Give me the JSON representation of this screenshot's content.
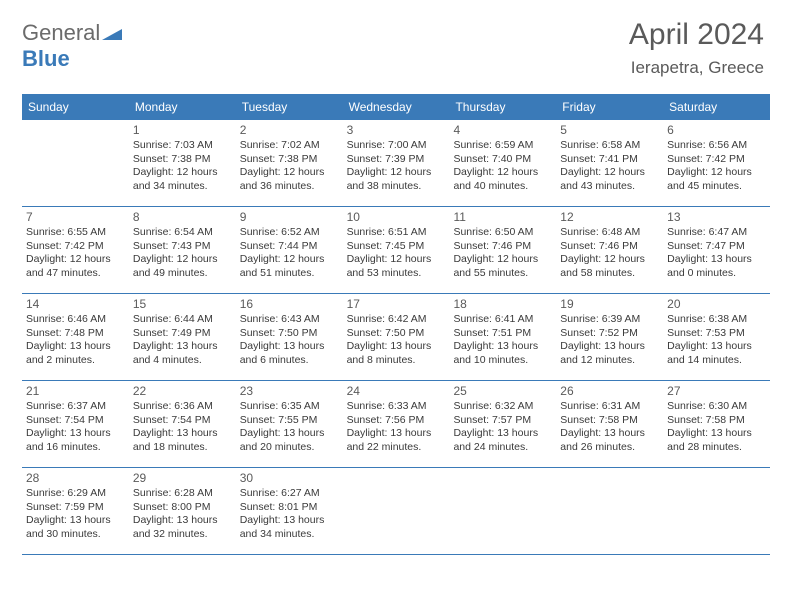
{
  "logo": {
    "word1": "General",
    "word2": "Blue"
  },
  "title": "April 2024",
  "location": "Ierapetra, Greece",
  "colors": {
    "header_bg": "#3a7ab8",
    "header_fg": "#ffffff",
    "text": "#3a3a3a",
    "muted": "#5a5a5a",
    "rule": "#3a7ab8",
    "background": "#ffffff"
  },
  "day_names": [
    "Sunday",
    "Monday",
    "Tuesday",
    "Wednesday",
    "Thursday",
    "Friday",
    "Saturday"
  ],
  "weeks": [
    [
      null,
      {
        "n": "1",
        "sr": "7:03 AM",
        "ss": "7:38 PM",
        "dl": "12 hours and 34 minutes."
      },
      {
        "n": "2",
        "sr": "7:02 AM",
        "ss": "7:38 PM",
        "dl": "12 hours and 36 minutes."
      },
      {
        "n": "3",
        "sr": "7:00 AM",
        "ss": "7:39 PM",
        "dl": "12 hours and 38 minutes."
      },
      {
        "n": "4",
        "sr": "6:59 AM",
        "ss": "7:40 PM",
        "dl": "12 hours and 40 minutes."
      },
      {
        "n": "5",
        "sr": "6:58 AM",
        "ss": "7:41 PM",
        "dl": "12 hours and 43 minutes."
      },
      {
        "n": "6",
        "sr": "6:56 AM",
        "ss": "7:42 PM",
        "dl": "12 hours and 45 minutes."
      }
    ],
    [
      {
        "n": "7",
        "sr": "6:55 AM",
        "ss": "7:42 PM",
        "dl": "12 hours and 47 minutes."
      },
      {
        "n": "8",
        "sr": "6:54 AM",
        "ss": "7:43 PM",
        "dl": "12 hours and 49 minutes."
      },
      {
        "n": "9",
        "sr": "6:52 AM",
        "ss": "7:44 PM",
        "dl": "12 hours and 51 minutes."
      },
      {
        "n": "10",
        "sr": "6:51 AM",
        "ss": "7:45 PM",
        "dl": "12 hours and 53 minutes."
      },
      {
        "n": "11",
        "sr": "6:50 AM",
        "ss": "7:46 PM",
        "dl": "12 hours and 55 minutes."
      },
      {
        "n": "12",
        "sr": "6:48 AM",
        "ss": "7:46 PM",
        "dl": "12 hours and 58 minutes."
      },
      {
        "n": "13",
        "sr": "6:47 AM",
        "ss": "7:47 PM",
        "dl": "13 hours and 0 minutes."
      }
    ],
    [
      {
        "n": "14",
        "sr": "6:46 AM",
        "ss": "7:48 PM",
        "dl": "13 hours and 2 minutes."
      },
      {
        "n": "15",
        "sr": "6:44 AM",
        "ss": "7:49 PM",
        "dl": "13 hours and 4 minutes."
      },
      {
        "n": "16",
        "sr": "6:43 AM",
        "ss": "7:50 PM",
        "dl": "13 hours and 6 minutes."
      },
      {
        "n": "17",
        "sr": "6:42 AM",
        "ss": "7:50 PM",
        "dl": "13 hours and 8 minutes."
      },
      {
        "n": "18",
        "sr": "6:41 AM",
        "ss": "7:51 PM",
        "dl": "13 hours and 10 minutes."
      },
      {
        "n": "19",
        "sr": "6:39 AM",
        "ss": "7:52 PM",
        "dl": "13 hours and 12 minutes."
      },
      {
        "n": "20",
        "sr": "6:38 AM",
        "ss": "7:53 PM",
        "dl": "13 hours and 14 minutes."
      }
    ],
    [
      {
        "n": "21",
        "sr": "6:37 AM",
        "ss": "7:54 PM",
        "dl": "13 hours and 16 minutes."
      },
      {
        "n": "22",
        "sr": "6:36 AM",
        "ss": "7:54 PM",
        "dl": "13 hours and 18 minutes."
      },
      {
        "n": "23",
        "sr": "6:35 AM",
        "ss": "7:55 PM",
        "dl": "13 hours and 20 minutes."
      },
      {
        "n": "24",
        "sr": "6:33 AM",
        "ss": "7:56 PM",
        "dl": "13 hours and 22 minutes."
      },
      {
        "n": "25",
        "sr": "6:32 AM",
        "ss": "7:57 PM",
        "dl": "13 hours and 24 minutes."
      },
      {
        "n": "26",
        "sr": "6:31 AM",
        "ss": "7:58 PM",
        "dl": "13 hours and 26 minutes."
      },
      {
        "n": "27",
        "sr": "6:30 AM",
        "ss": "7:58 PM",
        "dl": "13 hours and 28 minutes."
      }
    ],
    [
      {
        "n": "28",
        "sr": "6:29 AM",
        "ss": "7:59 PM",
        "dl": "13 hours and 30 minutes."
      },
      {
        "n": "29",
        "sr": "6:28 AM",
        "ss": "8:00 PM",
        "dl": "13 hours and 32 minutes."
      },
      {
        "n": "30",
        "sr": "6:27 AM",
        "ss": "8:01 PM",
        "dl": "13 hours and 34 minutes."
      },
      null,
      null,
      null,
      null
    ]
  ],
  "labels": {
    "sunrise": "Sunrise: ",
    "sunset": "Sunset: ",
    "daylight": "Daylight: "
  }
}
